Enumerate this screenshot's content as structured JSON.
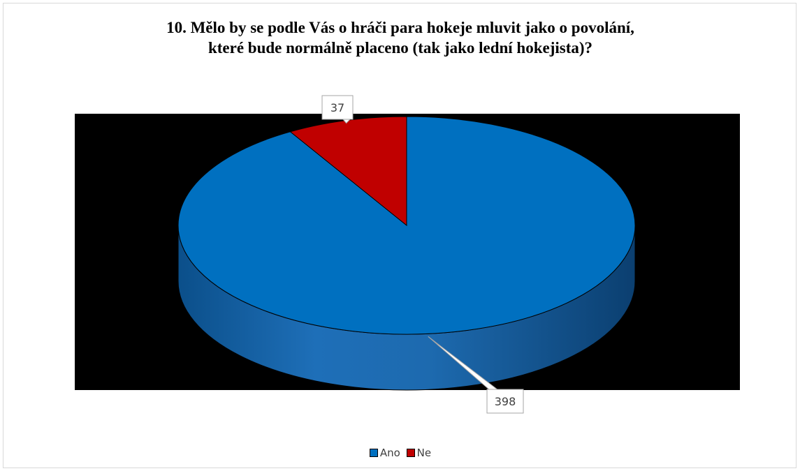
{
  "chart_data": {
    "type": "pie",
    "title_lines": [
      "10. Mělo by se podle Vás o hráči para hokeje mluvit jako o povolání,",
      "které bude normálně placeno (tak jako lední hokejista)?"
    ],
    "categories": [
      "Ano",
      "Ne"
    ],
    "values": [
      398,
      37
    ],
    "colors": {
      "Ano": "#0070C0",
      "Ne": "#C00000"
    },
    "plot_background": "#000000",
    "legend_position": "bottom",
    "style": "3d",
    "data_labels": [
      "398",
      "37"
    ]
  }
}
